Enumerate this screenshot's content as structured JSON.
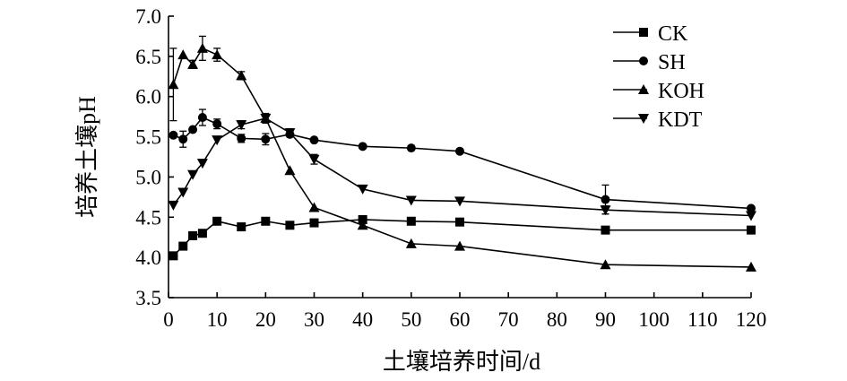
{
  "chart_data": {
    "type": "line",
    "xlabel": "土壤培养时间/d",
    "ylabel": "培养土壤pH",
    "xlim": [
      0,
      120
    ],
    "ylim": [
      3.5,
      7.0
    ],
    "xticks": [
      0,
      10,
      20,
      30,
      40,
      50,
      60,
      70,
      80,
      90,
      100,
      110,
      120
    ],
    "yticks": [
      "3.5",
      "4.0",
      "4.5",
      "5.0",
      "5.5",
      "6.0",
      "6.5",
      "7.0"
    ],
    "grid": false,
    "legend_position": "top-right",
    "series": [
      {
        "name": "CK",
        "marker": "square",
        "x": [
          1,
          3,
          5,
          7,
          10,
          15,
          20,
          25,
          30,
          40,
          50,
          60,
          90,
          120
        ],
        "y": [
          4.02,
          4.14,
          4.27,
          4.3,
          4.45,
          4.38,
          4.45,
          4.4,
          4.43,
          4.47,
          4.45,
          4.44,
          4.34,
          4.34
        ],
        "err": [
          0,
          0,
          0,
          0,
          0,
          0,
          0,
          0,
          0,
          0,
          0,
          0,
          0,
          0
        ]
      },
      {
        "name": "SH",
        "marker": "circle",
        "x": [
          1,
          3,
          5,
          7,
          10,
          15,
          20,
          25,
          30,
          40,
          50,
          60,
          90,
          120
        ],
        "y": [
          5.52,
          5.47,
          5.59,
          5.74,
          5.66,
          5.48,
          5.47,
          5.53,
          5.46,
          5.38,
          5.36,
          5.32,
          4.72,
          4.61
        ],
        "err": [
          0,
          0.1,
          0,
          0.1,
          0.06,
          0.05,
          0.07,
          0,
          0,
          0,
          0,
          0,
          0.18,
          0
        ]
      },
      {
        "name": "KOH",
        "marker": "triangle-up",
        "x": [
          1,
          3,
          5,
          7,
          10,
          15,
          20,
          25,
          30,
          40,
          50,
          60,
          90,
          120
        ],
        "y": [
          6.15,
          6.52,
          6.4,
          6.6,
          6.52,
          6.26,
          5.73,
          5.08,
          4.62,
          4.4,
          4.17,
          4.14,
          3.91,
          3.88
        ],
        "err": [
          0.45,
          0,
          0.05,
          0.15,
          0.08,
          0.05,
          0.05,
          0,
          0,
          0,
          0,
          0,
          0,
          0
        ]
      },
      {
        "name": "KDT",
        "marker": "triangle-down",
        "x": [
          1,
          3,
          5,
          7,
          10,
          15,
          20,
          25,
          30,
          40,
          50,
          60,
          90,
          120
        ],
        "y": [
          4.65,
          4.81,
          5.03,
          5.17,
          5.46,
          5.65,
          5.73,
          5.55,
          5.22,
          4.85,
          4.71,
          4.7,
          4.59,
          4.52
        ],
        "err": [
          0,
          0,
          0,
          0,
          0,
          0.05,
          0.06,
          0.05,
          0.06,
          0,
          0,
          0,
          0.05,
          0
        ]
      }
    ]
  }
}
